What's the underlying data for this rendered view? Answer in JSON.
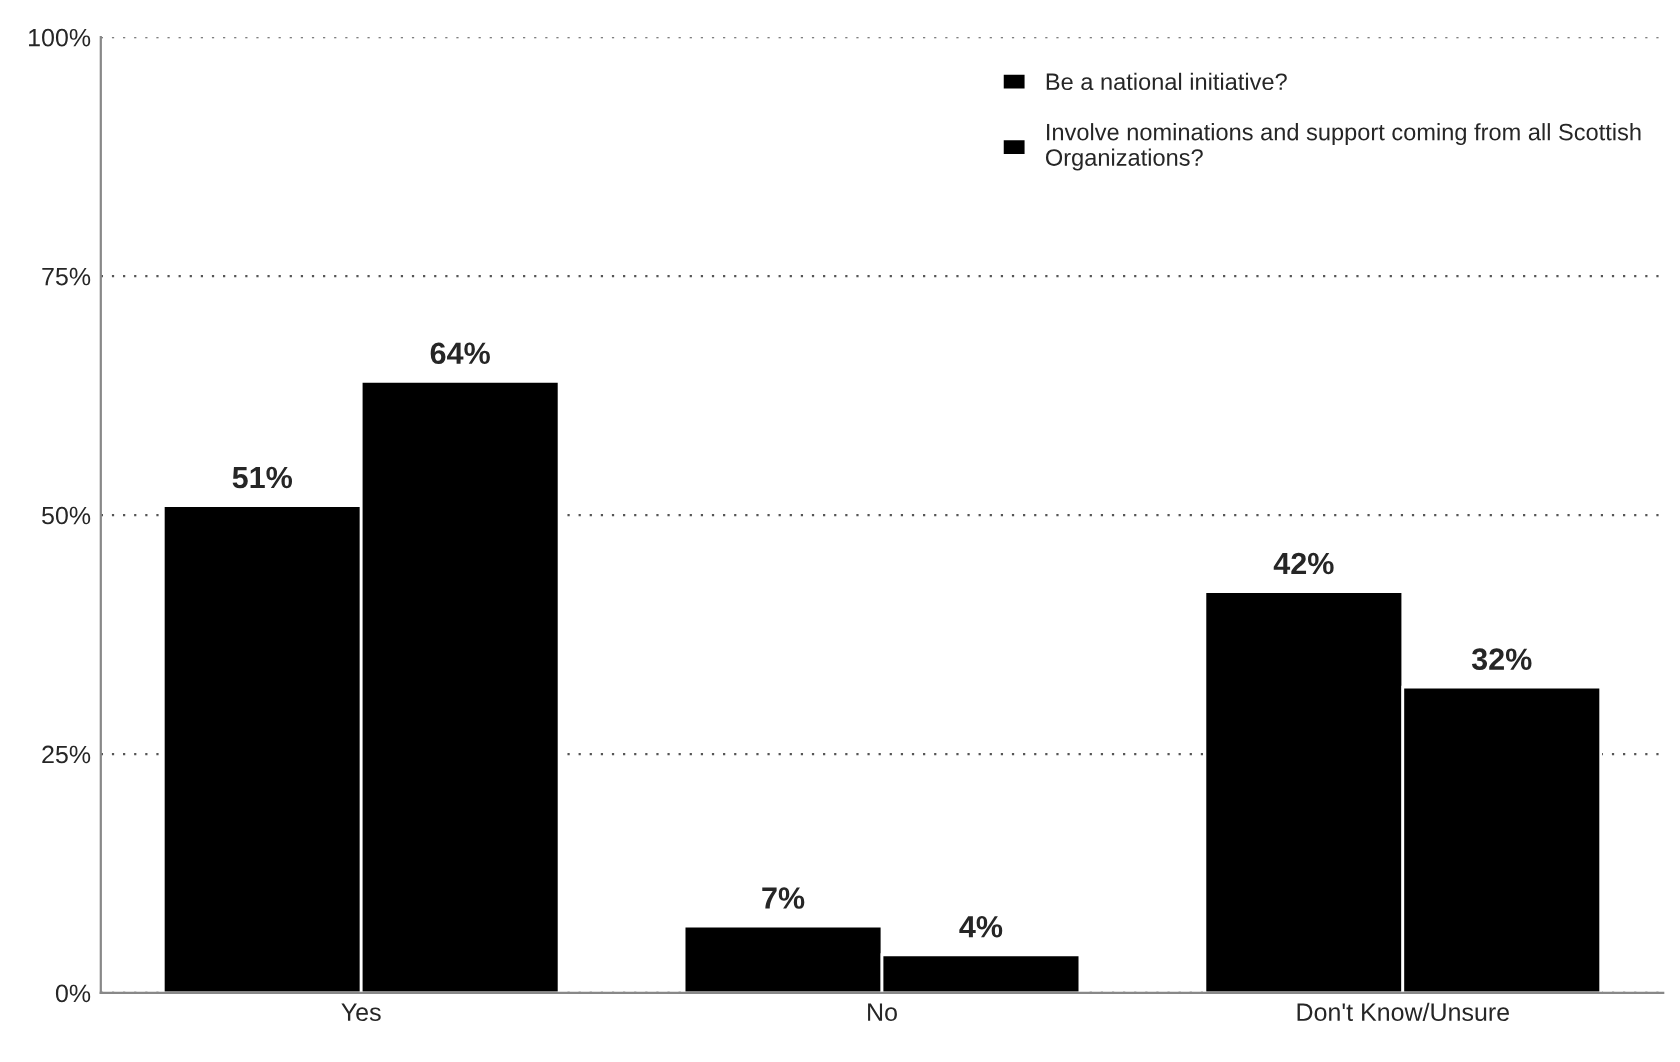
{
  "chart_data": {
    "type": "bar",
    "categories": [
      "Yes",
      "No",
      "Don't Know/Unsure"
    ],
    "series": [
      {
        "name": "Be a national initiative?",
        "color": "#000000",
        "values": [
          51,
          7,
          42
        ],
        "value_labels": [
          "51%",
          "7%",
          "42%"
        ]
      },
      {
        "name": "Involve nominations and support coming from all Scottish Organizations?",
        "color": "#000000",
        "values": [
          64,
          4,
          32
        ],
        "value_labels": [
          "64%",
          "4%",
          "32%"
        ]
      }
    ],
    "ylim": [
      0,
      100
    ],
    "yticks": [
      {
        "value": 0,
        "label": "0%"
      },
      {
        "value": 25,
        "label": "25%"
      },
      {
        "value": 50,
        "label": "50%"
      },
      {
        "value": 75,
        "label": "75%"
      },
      {
        "value": 100,
        "label": "100%"
      }
    ],
    "grid": "y",
    "legend": "top right"
  }
}
